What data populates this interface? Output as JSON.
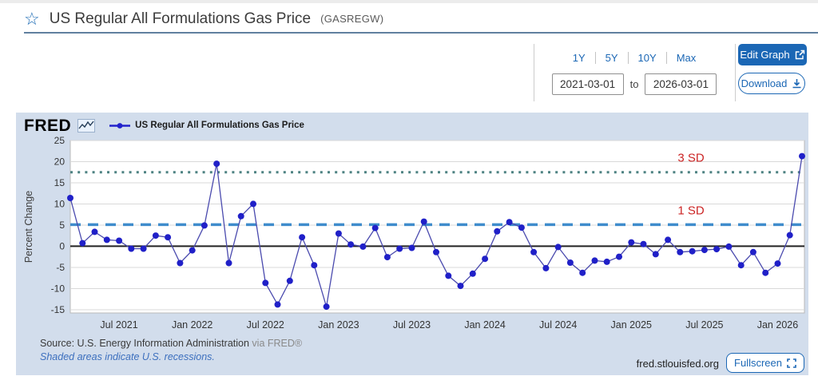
{
  "header": {
    "title": "US Regular All Formulations Gas Price",
    "series_id": "(GASREGW)"
  },
  "controls": {
    "ranges": [
      "1Y",
      "5Y",
      "10Y",
      "Max"
    ],
    "date_from": "2021-03-01",
    "to_label": "to",
    "date_to": "2026-03-01",
    "edit_graph_label": "Edit Graph",
    "download_label": "Download"
  },
  "chart": {
    "brand": "FRED",
    "legend_label": "US Regular All Formulations Gas Price",
    "footer": {
      "source_prefix": "Source: U.S. Energy Information Administration",
      "via": "via FRED®",
      "recession_note": "Shaded areas indicate U.S. recessions.",
      "site": "fred.stlouisfed.org",
      "fullscreen_label": "Fullscreen"
    }
  },
  "chart_data": {
    "type": "line",
    "title": "US Regular All Formulations Gas Price",
    "xlabel": "",
    "ylabel": "Percent Change",
    "ylim": [
      -15.8,
      25
    ],
    "yticks": [
      25,
      20,
      15,
      10,
      5,
      0,
      -5,
      -10,
      -15
    ],
    "grid": true,
    "legend_position": "top-left",
    "x": [
      "2021-03",
      "2021-04",
      "2021-05",
      "2021-06",
      "2021-07",
      "2021-08",
      "2021-09",
      "2021-10",
      "2021-11",
      "2021-12",
      "2022-01",
      "2022-02",
      "2022-03",
      "2022-04",
      "2022-05",
      "2022-06",
      "2022-07",
      "2022-08",
      "2022-09",
      "2022-10",
      "2022-11",
      "2022-12",
      "2023-01",
      "2023-02",
      "2023-03",
      "2023-04",
      "2023-05",
      "2023-06",
      "2023-07",
      "2023-08",
      "2023-09",
      "2023-10",
      "2023-11",
      "2023-12",
      "2024-01",
      "2024-02",
      "2024-03",
      "2024-04",
      "2024-05",
      "2024-06",
      "2024-07",
      "2024-08",
      "2024-09",
      "2024-10",
      "2024-11",
      "2024-12",
      "2025-01",
      "2025-02",
      "2025-03",
      "2025-04",
      "2025-05",
      "2025-06",
      "2025-07",
      "2025-08",
      "2025-09",
      "2025-10",
      "2025-11",
      "2025-12",
      "2026-01",
      "2026-02",
      "2026-03"
    ],
    "values": [
      11.4,
      0.7,
      3.4,
      1.5,
      1.3,
      -0.6,
      -0.6,
      2.5,
      2.1,
      -4.0,
      -1.0,
      4.9,
      19.5,
      -4.0,
      7.1,
      10.0,
      -8.7,
      -13.8,
      -8.2,
      2.1,
      -4.5,
      -14.3,
      3.0,
      0.4,
      -0.1,
      4.3,
      -2.6,
      -0.6,
      -0.4,
      5.8,
      -1.4,
      -7.0,
      -9.4,
      -6.5,
      -3.0,
      3.5,
      5.7,
      4.4,
      -1.4,
      -5.2,
      -0.2,
      -3.9,
      -6.3,
      -3.4,
      -3.7,
      -2.5,
      0.9,
      0.5,
      -1.9,
      1.5,
      -1.4,
      -1.2,
      -0.9,
      -0.7,
      -0.1,
      -4.5,
      -1.4,
      -6.3,
      -4.1,
      2.6,
      21.3
    ],
    "x_ticks": [
      {
        "label": "Jul 2021",
        "month_index": 4
      },
      {
        "label": "Jan 2022",
        "month_index": 10
      },
      {
        "label": "Jul 2022",
        "month_index": 16
      },
      {
        "label": "Jan 2023",
        "month_index": 22
      },
      {
        "label": "Jul 2023",
        "month_index": 28
      },
      {
        "label": "Jan 2024",
        "month_index": 34
      },
      {
        "label": "Jul 2024",
        "month_index": 40
      },
      {
        "label": "Jan 2025",
        "month_index": 46
      },
      {
        "label": "Jul 2025",
        "month_index": 52
      },
      {
        "label": "Jan 2026",
        "month_index": 58
      }
    ],
    "ref_lines": [
      {
        "label": "3 SD",
        "value": 17.5,
        "style": "dotted",
        "color": "#4d8282"
      },
      {
        "label": "1 SD",
        "value": 5.1,
        "style": "dashed",
        "color": "#3f8ccc"
      }
    ],
    "annotation_color": "#cc2626",
    "line_color": "#4a4aae",
    "marker_color": "#2020c8",
    "zero_line_color": "#222222",
    "grid_color": "#d9d9d9",
    "plot_bg": "#ffffff",
    "container_bg": "#d2ddec"
  }
}
